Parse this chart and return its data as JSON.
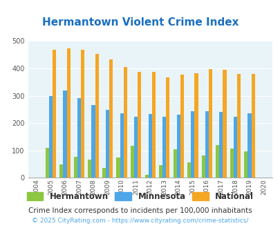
{
  "title": "Hermantown Violent Crime Index",
  "years": [
    2004,
    2005,
    2006,
    2007,
    2008,
    2009,
    2010,
    2011,
    2012,
    2013,
    2014,
    2015,
    2016,
    2017,
    2018,
    2019,
    2020
  ],
  "hermantown": [
    0,
    110,
    50,
    76,
    67,
    36,
    75,
    118,
    10,
    46,
    104,
    56,
    82,
    120,
    108,
    96,
    0
  ],
  "minnesota": [
    0,
    298,
    318,
    292,
    265,
    248,
    237,
    224,
    233,
    224,
    231,
    244,
    244,
    240,
    223,
    236,
    0
  ],
  "national": [
    0,
    469,
    473,
    467,
    454,
    432,
    405,
    387,
    388,
    367,
    377,
    383,
    398,
    394,
    380,
    379,
    0
  ],
  "bar_color_hermantown": "#8DC63F",
  "bar_color_minnesota": "#4DA6E8",
  "bar_color_national": "#F5A623",
  "plot_bg_color": "#E8F4F8",
  "title_color": "#1A6FBF",
  "yticks": [
    0,
    100,
    200,
    300,
    400,
    500
  ],
  "subtitle": "Crime Index corresponds to incidents per 100,000 inhabitants",
  "footer": "© 2025 CityRating.com - https://www.cityrating.com/crime-statistics/",
  "legend_labels": [
    "Hermantown",
    "Minnesota",
    "National"
  ],
  "subtitle_color": "#333333",
  "footer_color": "#4DA6E8"
}
